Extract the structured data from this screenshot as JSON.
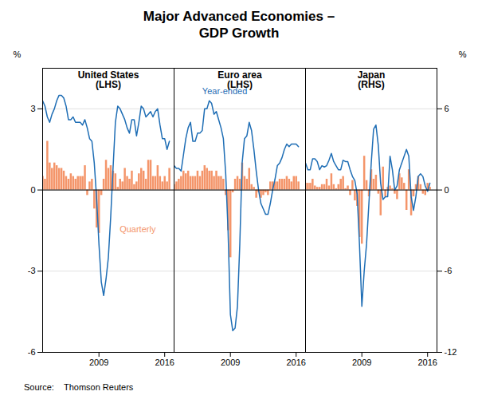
{
  "title": "Major Advanced Economies –\nGDP Growth",
  "source": "Source:    Thomson Reuters",
  "chart_data": [
    {
      "type": "bar",
      "title": "United States\n(LHS)",
      "x": [
        2003.0,
        2003.25,
        2003.5,
        2003.75,
        2004.0,
        2004.25,
        2004.5,
        2004.75,
        2005.0,
        2005.25,
        2005.5,
        2005.75,
        2006.0,
        2006.25,
        2006.5,
        2006.75,
        2007.0,
        2007.25,
        2007.5,
        2007.75,
        2008.0,
        2008.25,
        2008.5,
        2008.75,
        2009.0,
        2009.25,
        2009.5,
        2009.75,
        2010.0,
        2010.25,
        2010.5,
        2010.75,
        2011.0,
        2011.25,
        2011.5,
        2011.75,
        2012.0,
        2012.25,
        2012.5,
        2012.75,
        2013.0,
        2013.25,
        2013.5,
        2013.75,
        2014.0,
        2014.25,
        2014.5,
        2014.75,
        2015.0,
        2015.25,
        2015.5,
        2015.75,
        2016.0,
        2016.25,
        2016.5
      ],
      "series": [
        {
          "name": "Quarterly",
          "type": "bar",
          "color": "#f4956a",
          "values": [
            0.5,
            0.4,
            1.8,
            1.0,
            0.8,
            1.0,
            0.9,
            0.8,
            0.8,
            0.7,
            0.5,
            0.4,
            0.6,
            0.5,
            0.4,
            0.5,
            0.5,
            0.5,
            0.9,
            -0.2,
            0.3,
            0.4,
            -0.7,
            -1.4,
            -1.6,
            -0.2,
            0.4,
            1.1,
            0.8,
            0.9,
            0.7,
            0.6,
            0.1,
            0.4,
            0.3,
            0.8,
            0.5,
            0.4,
            0.7,
            0.2,
            0.3,
            0.6,
            0.8,
            0.7,
            0.4,
            1.1,
            1.1,
            0.5,
            0.5,
            0.9,
            0.5,
            0.3,
            0.5,
            0.3,
            0.8
          ]
        },
        {
          "name": "Year-ended",
          "type": "line",
          "color": "#1f6eb5",
          "values": [
            3.3,
            3.1,
            2.7,
            2.5,
            2.8,
            3.0,
            3.3,
            3.5,
            3.5,
            3.4,
            3.1,
            2.6,
            2.6,
            2.7,
            2.5,
            2.5,
            2.5,
            2.4,
            2.6,
            2.3,
            1.9,
            1.8,
            1.0,
            -0.3,
            -2.0,
            -3.4,
            -3.9,
            -3.3,
            -2.5,
            -1.0,
            0.8,
            2.5,
            3.1,
            3.0,
            2.8,
            2.6,
            2.3,
            2.1,
            2.6,
            2.6,
            2.0,
            2.5,
            3.1,
            3.0,
            2.7,
            2.8,
            2.9,
            2.7,
            2.9,
            3.0,
            2.4,
            1.9,
            1.9,
            1.5,
            1.8
          ]
        }
      ],
      "xlim": [
        2003,
        2017
      ],
      "xticks": [
        2009,
        2016
      ],
      "ylim": [
        -6,
        4.5
      ],
      "yticks": [
        -6,
        -3,
        0,
        3
      ],
      "ylabel": "%",
      "grid": true,
      "annotations": [
        {
          "text": "Quarterly",
          "x": 2011.2,
          "y": -1.55
        }
      ]
    },
    {
      "type": "bar",
      "title": "Euro area\n(LHS)",
      "x": [
        2003.0,
        2003.25,
        2003.5,
        2003.75,
        2004.0,
        2004.25,
        2004.5,
        2004.75,
        2005.0,
        2005.25,
        2005.5,
        2005.75,
        2006.0,
        2006.25,
        2006.5,
        2006.75,
        2007.0,
        2007.25,
        2007.5,
        2007.75,
        2008.0,
        2008.25,
        2008.5,
        2008.75,
        2009.0,
        2009.25,
        2009.5,
        2009.75,
        2010.0,
        2010.25,
        2010.5,
        2010.75,
        2011.0,
        2011.25,
        2011.5,
        2011.75,
        2012.0,
        2012.25,
        2012.5,
        2012.75,
        2013.0,
        2013.25,
        2013.5,
        2013.75,
        2014.0,
        2014.25,
        2014.5,
        2014.75,
        2015.0,
        2015.25,
        2015.5,
        2015.75,
        2016.0,
        2016.25
      ],
      "series": [
        {
          "name": "Quarterly",
          "type": "bar",
          "color": "#f4956a",
          "values": [
            0.2,
            0.3,
            0.4,
            0.5,
            0.7,
            0.6,
            0.7,
            0.5,
            0.5,
            0.5,
            0.7,
            0.5,
            0.7,
            0.9,
            0.8,
            0.7,
            0.7,
            0.5,
            0.7,
            0.5,
            0.5,
            0.4,
            -0.2,
            -1.5,
            -2.5,
            -0.1,
            0.4,
            0.5,
            0.4,
            1.0,
            0.5,
            0.4,
            0.8,
            0.2,
            0.1,
            -0.3,
            -0.1,
            -0.3,
            -0.2,
            -0.1,
            -0.2,
            0.3,
            0.3,
            0.3,
            0.3,
            0.4,
            0.4,
            0.4,
            0.5,
            0.4,
            0.3,
            0.5,
            0.5,
            0.3
          ]
        },
        {
          "name": "Year-ended",
          "type": "line",
          "color": "#1f6eb5",
          "values": [
            0.9,
            0.8,
            0.8,
            0.7,
            1.3,
            1.9,
            2.3,
            2.5,
            1.8,
            1.8,
            2.1,
            2.1,
            2.2,
            3.0,
            3.0,
            3.3,
            3.2,
            2.8,
            2.9,
            2.6,
            2.3,
            1.9,
            0.6,
            -1.5,
            -4.6,
            -5.2,
            -5.1,
            -4.3,
            -2.0,
            1.0,
            1.9,
            2.0,
            2.5,
            2.2,
            1.5,
            0.7,
            0.0,
            -0.5,
            -0.7,
            -0.9,
            -0.9,
            -0.5,
            0.0,
            0.4,
            0.9,
            1.0,
            1.2,
            1.5,
            1.7,
            1.6,
            1.7,
            1.7,
            1.7,
            1.6
          ]
        }
      ],
      "xlim": [
        2003,
        2017
      ],
      "xticks": [
        2009,
        2016
      ],
      "ylim": [
        -6,
        4.5
      ],
      "yticks": [
        -6,
        -3,
        0,
        3
      ],
      "grid": true,
      "tick_labels": "x",
      "annotations": [
        {
          "text": "Year-ended",
          "x": 2006.0,
          "y": 3.55
        }
      ]
    },
    {
      "type": "bar",
      "title": "Japan\n(RHS)",
      "x": [
        2003.0,
        2003.25,
        2003.5,
        2003.75,
        2004.0,
        2004.25,
        2004.5,
        2004.75,
        2005.0,
        2005.25,
        2005.5,
        2005.75,
        2006.0,
        2006.25,
        2006.5,
        2006.75,
        2007.0,
        2007.25,
        2007.5,
        2007.75,
        2008.0,
        2008.25,
        2008.5,
        2008.75,
        2009.0,
        2009.25,
        2009.5,
        2009.75,
        2010.0,
        2010.25,
        2010.5,
        2010.75,
        2011.0,
        2011.25,
        2011.5,
        2011.75,
        2012.0,
        2012.25,
        2012.5,
        2012.75,
        2013.0,
        2013.25,
        2013.5,
        2013.75,
        2014.0,
        2014.25,
        2014.5,
        2014.75,
        2015.0,
        2015.25,
        2015.5,
        2015.75,
        2016.0,
        2016.25
      ],
      "series": [
        {
          "name": "Quarterly",
          "type": "bar",
          "color": "#f4956a",
          "axis": "y2",
          "values": [
            0.5,
            0.5,
            0.5,
            0.8,
            0.3,
            0.2,
            0.2,
            0.4,
            0.4,
            0.8,
            0.3,
            1.2,
            0.4,
            0.1,
            0.4,
            0.8,
            1.0,
            0.1,
            0.3,
            -0.4,
            0.7,
            -0.8,
            -1.2,
            -3.5,
            -4.0,
            2.5,
            0.7,
            -0.5,
            1.5,
            0.8,
            1.1,
            -0.3,
            -1.9,
            1.7,
            -0.5,
            0.2,
            0.3,
            0.1,
            -0.3,
            -0.7,
            1.2,
            0.9,
            0.5,
            -1.5,
            1.5,
            -1.9,
            -0.5,
            0.4,
            1.0,
            0.4,
            -0.3,
            -0.4,
            0.5,
            0.2
          ]
        },
        {
          "name": "Year-ended",
          "type": "line",
          "color": "#1f6eb5",
          "axis": "y2",
          "values": [
            2.0,
            1.5,
            1.5,
            2.3,
            2.3,
            2.1,
            1.5,
            1.8,
            1.7,
            1.8,
            2.2,
            2.7,
            2.1,
            1.8,
            1.5,
            1.5,
            2.2,
            2.1,
            2.1,
            1.5,
            1.0,
            0.7,
            -0.3,
            -4.1,
            -8.6,
            -6.0,
            -4.0,
            -1.0,
            2.0,
            4.5,
            4.8,
            3.3,
            0.5,
            -0.7,
            -0.5,
            -0.5,
            2.5,
            1.5,
            0.0,
            0.3,
            1.5,
            2.0,
            2.5,
            3.0,
            2.5,
            -0.5,
            -1.5,
            -0.5,
            1.0,
            1.2,
            1.0,
            0.3,
            -0.1,
            0.5
          ]
        }
      ],
      "xlim": [
        2003,
        2017
      ],
      "xticks": [
        2009,
        2016
      ],
      "y2lim": [
        -12,
        9
      ],
      "y2ticks": [
        -12,
        -6,
        0,
        6
      ],
      "y2label": "%",
      "grid": true
    }
  ]
}
